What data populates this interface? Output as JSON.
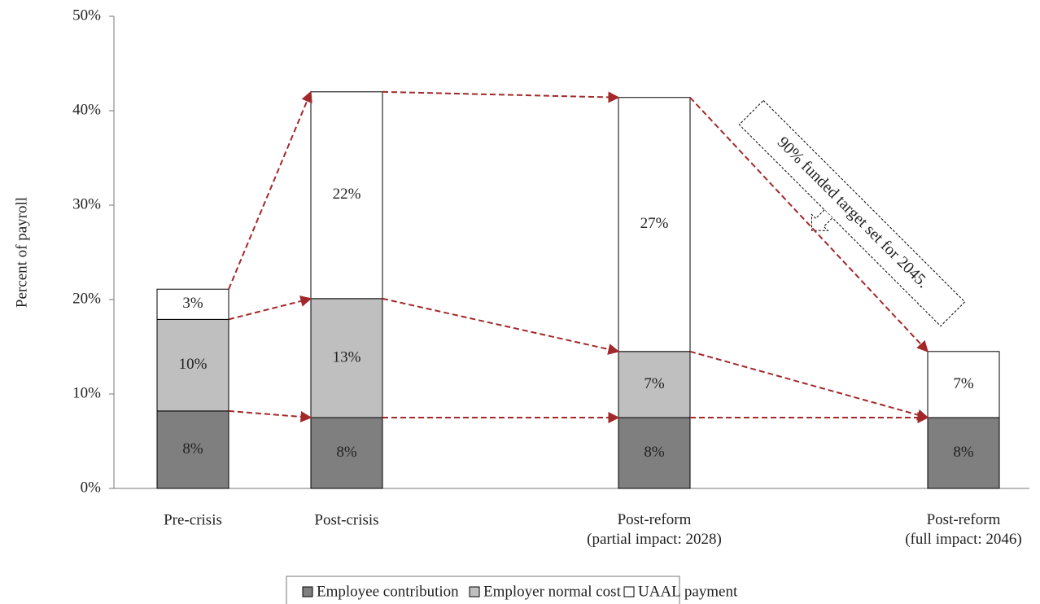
{
  "chart_data": {
    "type": "stacked-bar",
    "y_label": "Percent of payroll",
    "categories": [
      "Pre-crisis",
      "Post-crisis",
      "Post-reform\n(partial impact: 2028)",
      "Post-reform\n(full impact: 2046)"
    ],
    "series": [
      {
        "name": "Employee contribution",
        "color": "#7f7f7f",
        "values": [
          8.2,
          7.5,
          7.5,
          7.5
        ],
        "value_labels": [
          "8%",
          "8%",
          "8%",
          "8%"
        ]
      },
      {
        "name": "Employer normal cost",
        "color": "#bfbfbf",
        "values": [
          9.7,
          12.6,
          7.0,
          null
        ],
        "value_labels": [
          "10%",
          "13%",
          "7%",
          null
        ]
      },
      {
        "name": "UAAL payment",
        "color": "#ffffff",
        "values": [
          3.2,
          21.9,
          26.9,
          7.0
        ],
        "value_labels": [
          "3%",
          "22%",
          "27%",
          "7%"
        ]
      }
    ],
    "ylim": [
      0,
      50
    ],
    "yticks": [
      {
        "value": 0,
        "label": "0%"
      },
      {
        "value": 10,
        "label": "10%"
      },
      {
        "value": 20,
        "label": "20%"
      },
      {
        "value": 30,
        "label": "30%"
      },
      {
        "value": 40,
        "label": "40%"
      },
      {
        "value": 50,
        "label": "50%"
      }
    ],
    "annotation": "90% funded target set for 2045.",
    "grid": false
  }
}
